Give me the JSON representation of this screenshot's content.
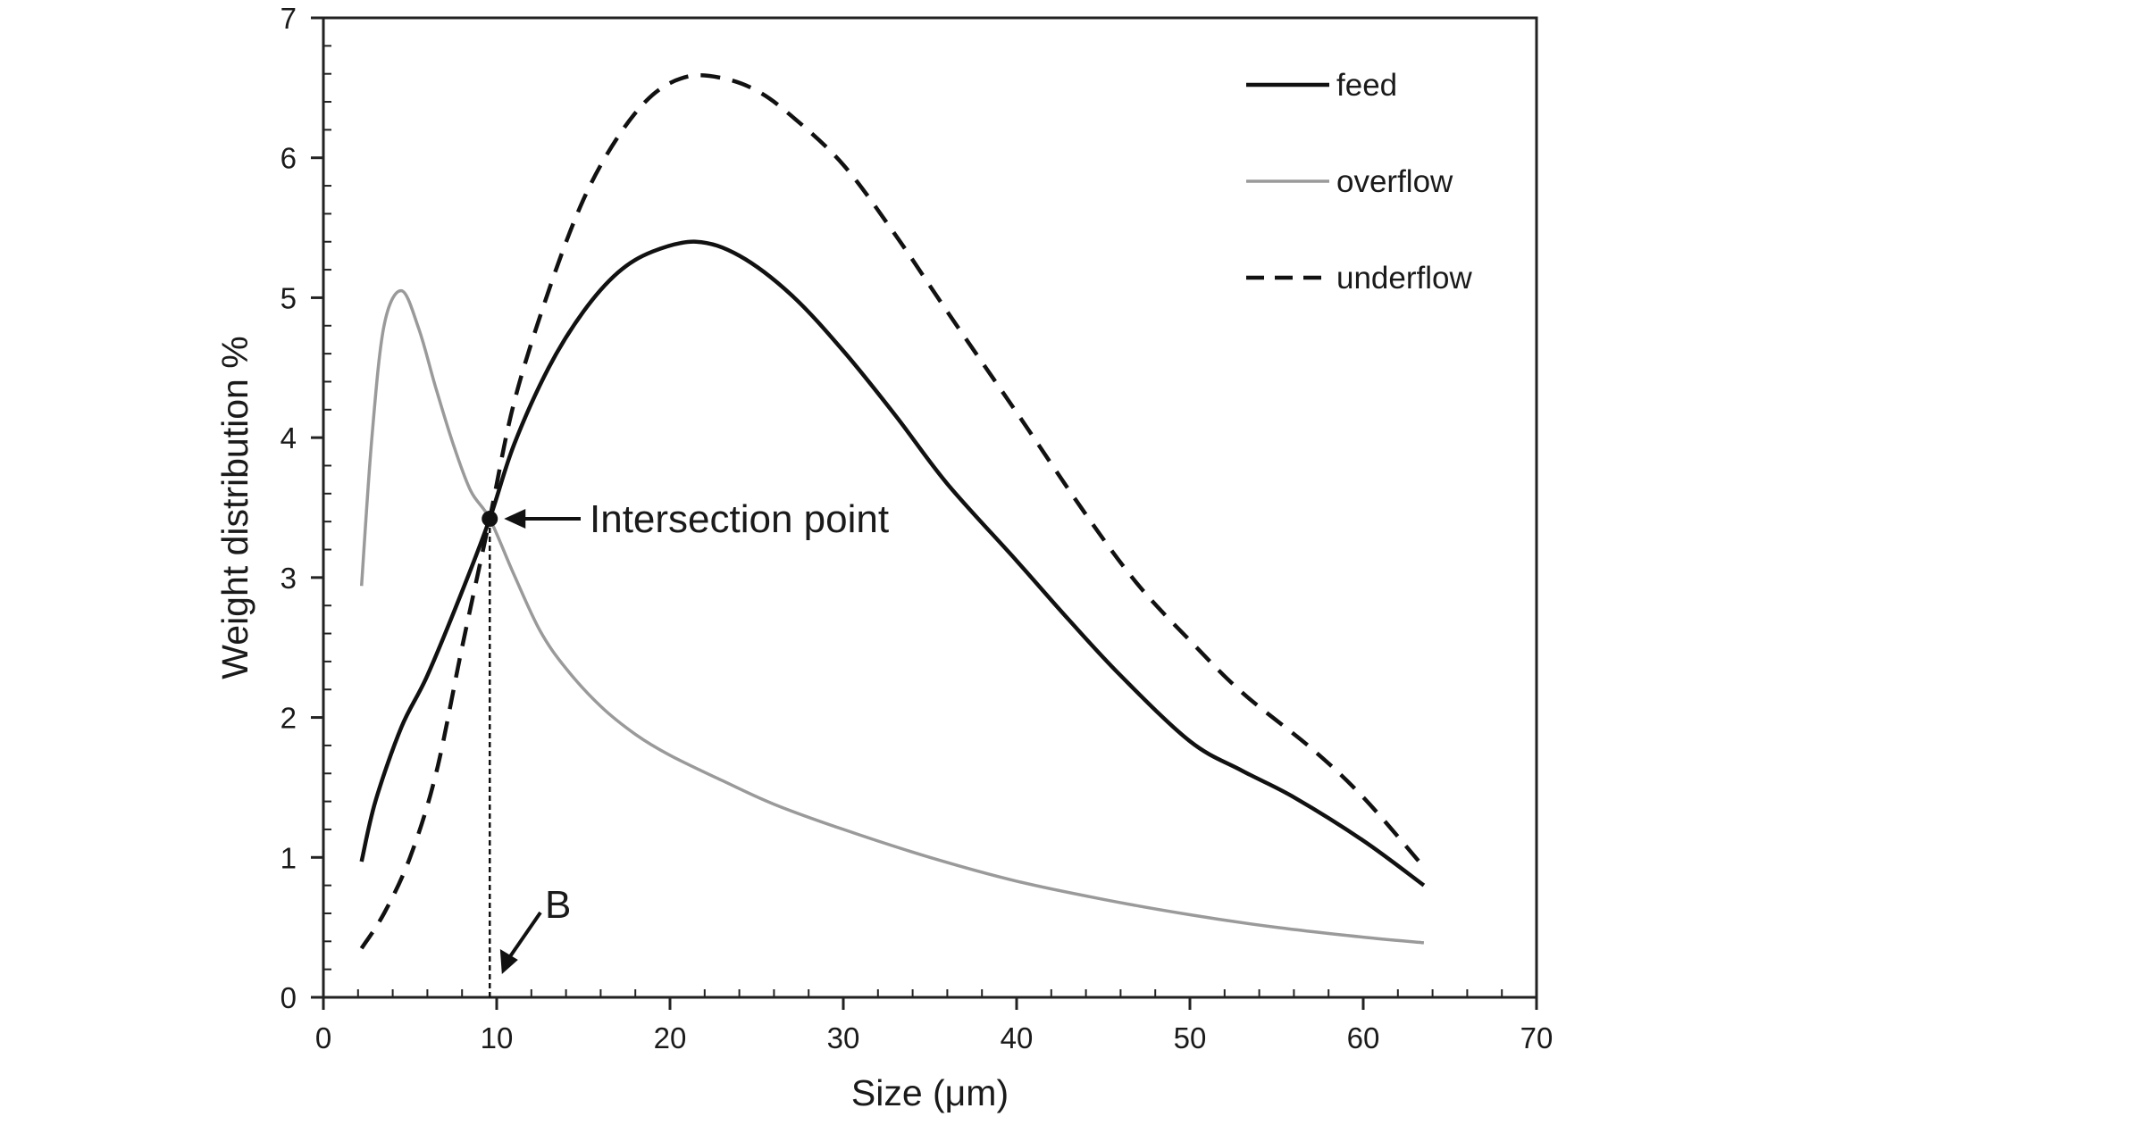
{
  "chart_data": {
    "type": "line",
    "xlabel": "Size (μm)",
    "ylabel": "Weight distribution %",
    "xlim": [
      0,
      70
    ],
    "ylim": [
      0,
      7
    ],
    "xticks": [
      0,
      10,
      20,
      30,
      40,
      50,
      60,
      70
    ],
    "yticks": [
      0,
      1,
      2,
      3,
      4,
      5,
      6,
      7
    ],
    "grid": false,
    "legend_position": "top-right",
    "series": [
      {
        "name": "feed",
        "color": "#111111",
        "dash": "solid",
        "points": [
          [
            2.2,
            0.97
          ],
          [
            3,
            1.4
          ],
          [
            4.5,
            1.93
          ],
          [
            6,
            2.3
          ],
          [
            8,
            2.9
          ],
          [
            9.6,
            3.42
          ],
          [
            11,
            3.95
          ],
          [
            13,
            4.5
          ],
          [
            15,
            4.9
          ],
          [
            17,
            5.18
          ],
          [
            19,
            5.33
          ],
          [
            21.5,
            5.4
          ],
          [
            24,
            5.3
          ],
          [
            27,
            5.02
          ],
          [
            30,
            4.62
          ],
          [
            33,
            4.16
          ],
          [
            36,
            3.67
          ],
          [
            40,
            3.12
          ],
          [
            43,
            2.7
          ],
          [
            46,
            2.3
          ],
          [
            50,
            1.83
          ],
          [
            53,
            1.62
          ],
          [
            56,
            1.43
          ],
          [
            60,
            1.12
          ],
          [
            63.5,
            0.8
          ]
        ]
      },
      {
        "name": "overflow",
        "color": "#9a9a9a",
        "dash": "solid",
        "points": [
          [
            2.2,
            2.94
          ],
          [
            2.8,
            4.0
          ],
          [
            3.5,
            4.8
          ],
          [
            4.5,
            5.05
          ],
          [
            5.5,
            4.78
          ],
          [
            6.5,
            4.35
          ],
          [
            7.5,
            3.95
          ],
          [
            8.5,
            3.62
          ],
          [
            9.6,
            3.42
          ],
          [
            11,
            3.02
          ],
          [
            12.5,
            2.62
          ],
          [
            14,
            2.35
          ],
          [
            16,
            2.08
          ],
          [
            18,
            1.88
          ],
          [
            20,
            1.73
          ],
          [
            23,
            1.55
          ],
          [
            26,
            1.38
          ],
          [
            30,
            1.2
          ],
          [
            35,
            1.0
          ],
          [
            40,
            0.83
          ],
          [
            45,
            0.7
          ],
          [
            50,
            0.59
          ],
          [
            55,
            0.5
          ],
          [
            60,
            0.43
          ],
          [
            63.5,
            0.39
          ]
        ]
      },
      {
        "name": "underflow",
        "color": "#111111",
        "dash": "dashed",
        "points": [
          [
            2.2,
            0.35
          ],
          [
            3.5,
            0.6
          ],
          [
            5,
            1.0
          ],
          [
            6.5,
            1.6
          ],
          [
            8,
            2.5
          ],
          [
            9.6,
            3.42
          ],
          [
            11,
            4.25
          ],
          [
            13,
            5.05
          ],
          [
            15,
            5.7
          ],
          [
            17,
            6.15
          ],
          [
            19,
            6.45
          ],
          [
            21,
            6.58
          ],
          [
            23,
            6.57
          ],
          [
            25,
            6.48
          ],
          [
            27,
            6.3
          ],
          [
            30,
            5.95
          ],
          [
            33,
            5.45
          ],
          [
            36,
            4.9
          ],
          [
            40,
            4.18
          ],
          [
            44,
            3.45
          ],
          [
            47,
            2.95
          ],
          [
            50,
            2.55
          ],
          [
            53,
            2.18
          ],
          [
            57,
            1.78
          ],
          [
            60,
            1.43
          ],
          [
            63.5,
            0.93
          ]
        ]
      }
    ],
    "annotations": {
      "intersection_label": "Intersection point",
      "intersection_point": [
        9.6,
        3.42
      ],
      "b_label": "B"
    }
  }
}
